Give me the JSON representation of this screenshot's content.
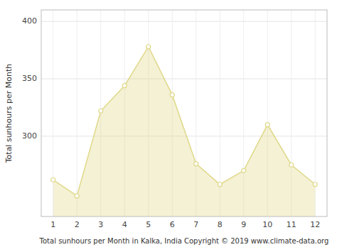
{
  "chart_data": {
    "type": "area",
    "x_label": "Total sunhours per Month in Kalka, India Copyright © 2019 www.climate-data.org",
    "y_label": "Total sunhours per Month",
    "x": [
      1,
      2,
      3,
      4,
      5,
      6,
      7,
      8,
      9,
      10,
      11,
      12
    ],
    "values": [
      262,
      248,
      322,
      344,
      378,
      336,
      276,
      258,
      270,
      310,
      275,
      258
    ],
    "color": "#e0d888",
    "marker": "circle",
    "xlim": [
      0.5,
      12.5
    ],
    "xticks": [
      1,
      2,
      3,
      4,
      5,
      6,
      7,
      8,
      9,
      10,
      11,
      12
    ],
    "ylim": [
      230,
      410
    ],
    "yticks": [
      300,
      350,
      400
    ],
    "grid": true
  }
}
